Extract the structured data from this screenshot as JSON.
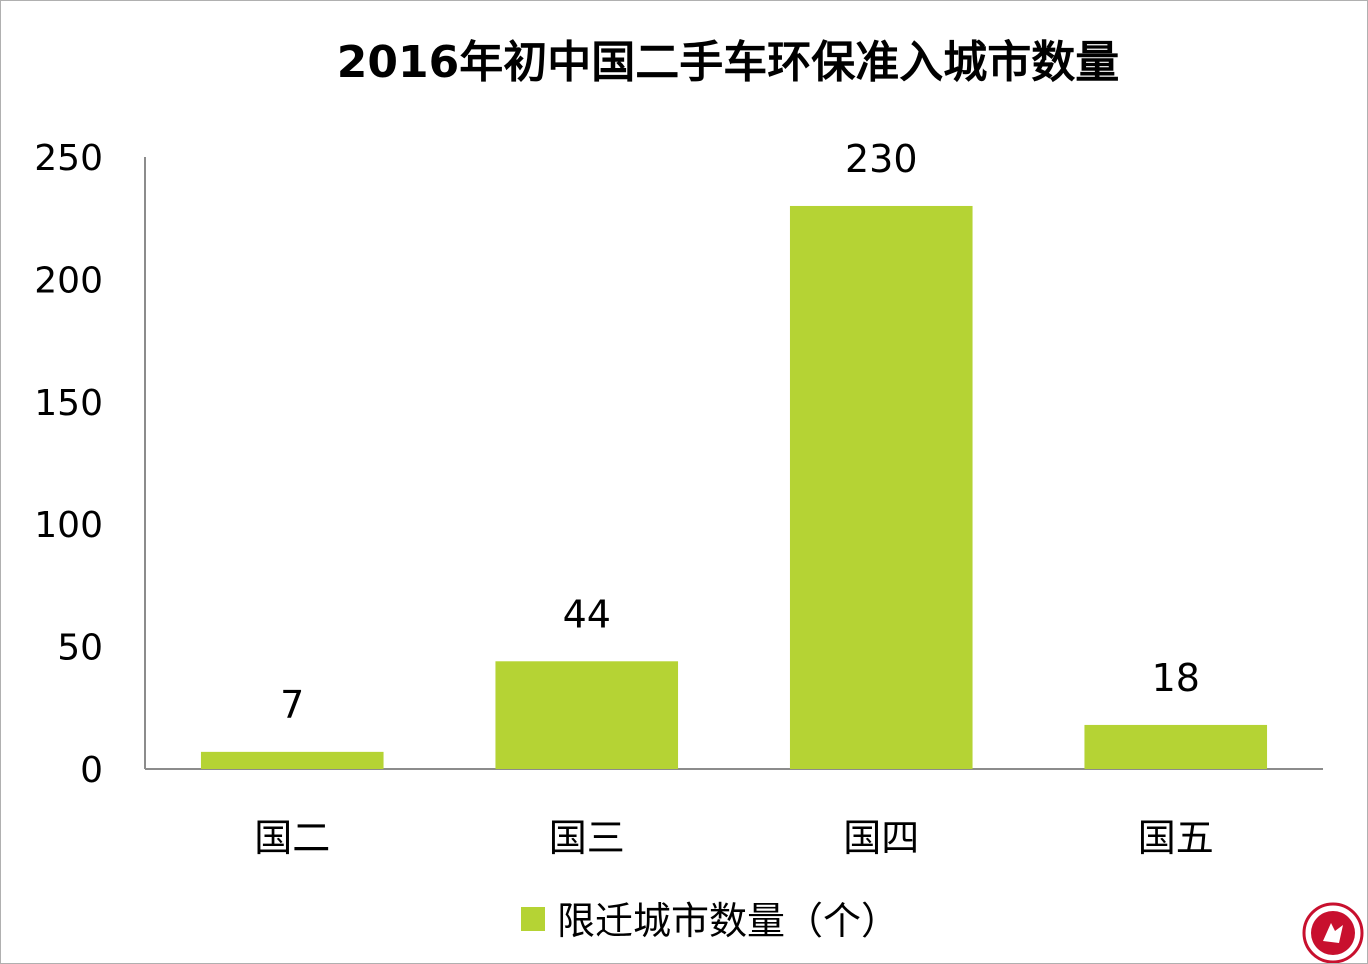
{
  "chart_data": {
    "type": "bar",
    "title": "2016年初中国二手车环保准入城市数量",
    "categories": [
      "国二",
      "国三",
      "国四",
      "国五"
    ],
    "series": [
      {
        "name": "限迁城市数量（个）",
        "values": [
          7,
          44,
          230,
          18
        ]
      }
    ],
    "ylim": [
      0,
      250
    ],
    "yticks": [
      0,
      50,
      100,
      150,
      200,
      250
    ],
    "grid": false,
    "legend": "bottom",
    "colors": {
      "bar": "#b5d334",
      "axis": "#8c8c8c"
    }
  },
  "logo": {
    "icon": "red-circular-emblem"
  }
}
